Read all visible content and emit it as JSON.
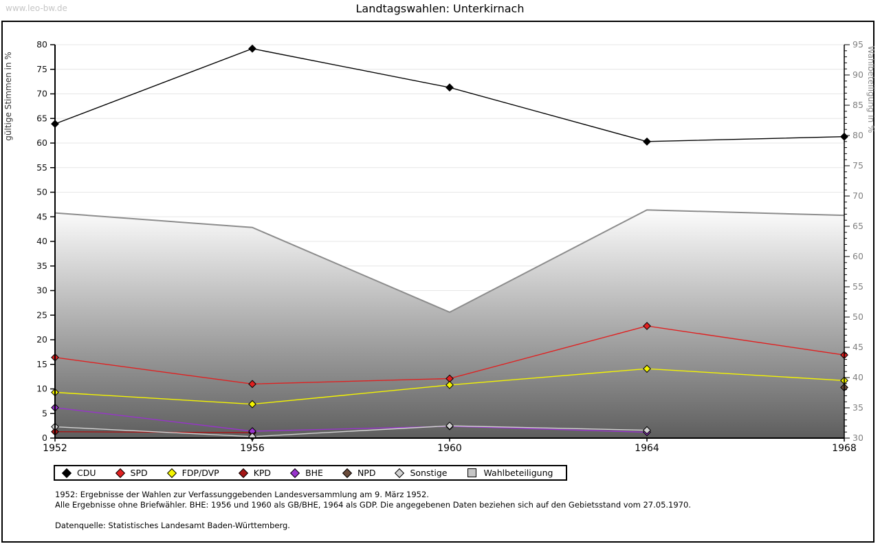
{
  "page": {
    "title": "Landtagswahlen: Unterkirnach",
    "watermark": "www.leo-bw.de"
  },
  "chart_data": {
    "type": "line",
    "title": "Landtagswahlen: Unterkirnach",
    "categories": [
      1952,
      1956,
      1960,
      1964,
      1968
    ],
    "left_axis": {
      "label": "gültige Stimmen in %",
      "min": 0,
      "max": 80,
      "tick_step": 5
    },
    "right_axis": {
      "label": "Wahlbeteiligung in %",
      "min": 30,
      "max": 95,
      "tick_step": 5
    },
    "grid": true,
    "legend_position": "bottom",
    "series": [
      {
        "name": "CDU",
        "axis": "left",
        "color": "#000000",
        "values": [
          63.9,
          79.2,
          71.3,
          60.3,
          61.3
        ]
      },
      {
        "name": "SPD",
        "axis": "left",
        "color": "#e02020",
        "values": [
          16.4,
          11.0,
          12.1,
          22.8,
          16.9
        ]
      },
      {
        "name": "FDP/DVP",
        "axis": "left",
        "color": "#f5f500",
        "values": [
          9.3,
          6.9,
          10.8,
          14.1,
          11.7
        ]
      },
      {
        "name": "KPD",
        "axis": "left",
        "color": "#a51515",
        "values": [
          1.3,
          1.1,
          null,
          null,
          null
        ]
      },
      {
        "name": "BHE",
        "axis": "left",
        "color": "#9833cc",
        "values": [
          6.2,
          1.4,
          2.4,
          1.2,
          null
        ]
      },
      {
        "name": "NPD",
        "axis": "left",
        "color": "#6b4c3b",
        "values": [
          null,
          null,
          null,
          null,
          10.3
        ]
      },
      {
        "name": "Sonstige",
        "axis": "left",
        "color": "#d3d3d3",
        "values": [
          2.3,
          0.3,
          2.5,
          1.6,
          null
        ]
      }
    ],
    "participation": {
      "name": "Wahlbeteiligung",
      "axis": "right",
      "values": [
        67.2,
        64.8,
        50.8,
        67.7,
        66.8
      ],
      "line_color": "#8c8c8c",
      "fill_top": "#ffffff",
      "fill_bottom": "#5e5e5e",
      "legend_swatch": "#c6c6c6"
    },
    "colors": {
      "grid": "#e6e6e6",
      "axis": "#000000",
      "right_tick_label": "#808080",
      "left_tick_label": "#111111"
    }
  },
  "notes": [
    "1952: Ergebnisse der Wahlen zur Verfassunggebenden Landesversammlung am 9. März 1952.",
    "Alle Ergebnisse ohne Briefwähler. BHE: 1956 und 1960 als GB/BHE, 1964 als GDP. Die angegebenen Daten beziehen sich auf den Gebietsstand vom 27.05.1970.",
    "Datenquelle: Statistisches Landesamt Baden-Württemberg."
  ]
}
